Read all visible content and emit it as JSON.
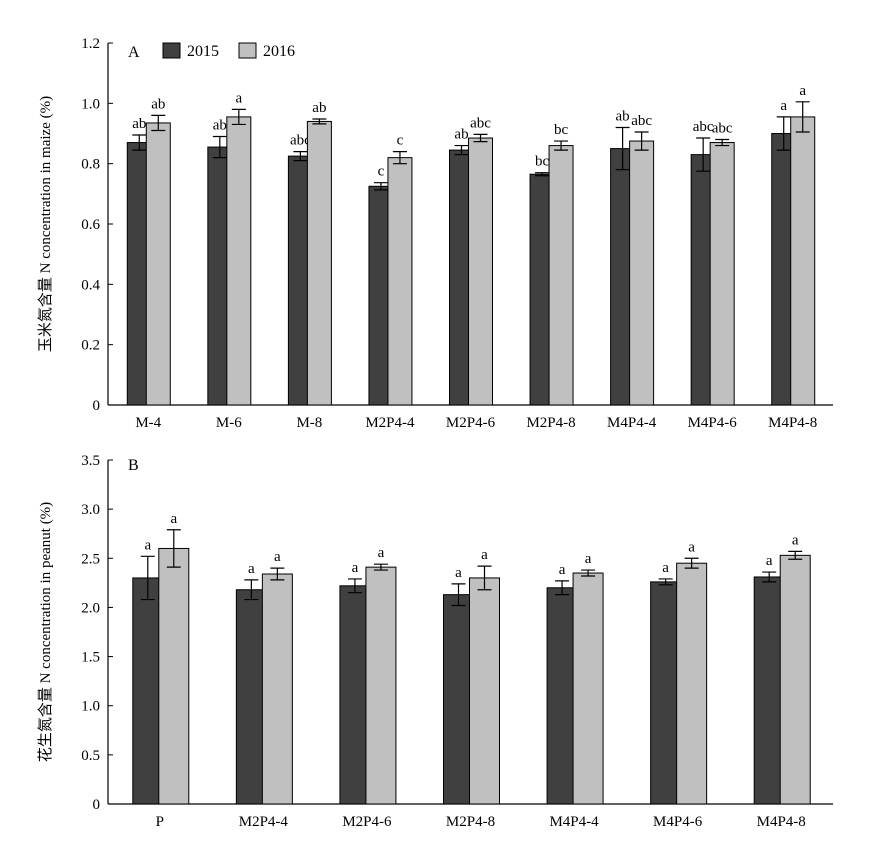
{
  "legend": {
    "series_colors": [
      "#404040",
      "#c0c0c0"
    ]
  },
  "chart_data": [
    {
      "type": "bar",
      "panel": "A",
      "ylabel": "玉米氮含量 N concentration in maize (%)",
      "ylim": [
        0,
        1.2
      ],
      "yticks": [
        "0",
        "0.2",
        "0.4",
        "0.6",
        "0.8",
        "1.0",
        "1.2"
      ],
      "categories": [
        "M-4",
        "M-6",
        "M-8",
        "M2P4-4",
        "M2P4-6",
        "M2P4-8",
        "M4P4-4",
        "M4P4-6",
        "M4P4-8"
      ],
      "legend_position": "top-left",
      "series": [
        {
          "name": "2015",
          "values": [
            0.87,
            0.855,
            0.825,
            0.725,
            0.845,
            0.765,
            0.85,
            0.83,
            0.9
          ],
          "errors": [
            0.025,
            0.035,
            0.015,
            0.012,
            0.015,
            0.005,
            0.07,
            0.055,
            0.055
          ],
          "labels": [
            "ab",
            "ab",
            "abc",
            "c",
            "ab",
            "bc",
            "ab",
            "abc",
            "a"
          ]
        },
        {
          "name": "2016",
          "values": [
            0.935,
            0.955,
            0.94,
            0.82,
            0.885,
            0.86,
            0.875,
            0.87,
            0.955
          ],
          "errors": [
            0.025,
            0.025,
            0.008,
            0.02,
            0.012,
            0.015,
            0.03,
            0.01,
            0.05
          ],
          "labels": [
            "ab",
            "a",
            "ab",
            "c",
            "abc",
            "bc",
            "abc",
            "abc",
            "a"
          ]
        }
      ]
    },
    {
      "type": "bar",
      "panel": "B",
      "ylabel": "花生氮含量 N concentration in peanut (%)",
      "ylim": [
        0,
        3.5
      ],
      "yticks": [
        "0",
        "0.5",
        "1.0",
        "1.5",
        "2.0",
        "2.5",
        "3.0",
        "3.5"
      ],
      "categories": [
        "P",
        "M2P4-4",
        "M2P4-6",
        "M2P4-8",
        "M4P4-4",
        "M4P4-6",
        "M4P4-8"
      ],
      "series": [
        {
          "name": "2015",
          "values": [
            2.3,
            2.18,
            2.22,
            2.13,
            2.2,
            2.26,
            2.31
          ],
          "errors": [
            0.22,
            0.1,
            0.07,
            0.11,
            0.07,
            0.03,
            0.05
          ],
          "labels": [
            "a",
            "a",
            "a",
            "a",
            "a",
            "a",
            "a"
          ]
        },
        {
          "name": "2016",
          "values": [
            2.6,
            2.34,
            2.41,
            2.3,
            2.35,
            2.45,
            2.53
          ],
          "errors": [
            0.19,
            0.06,
            0.03,
            0.12,
            0.03,
            0.05,
            0.04
          ],
          "labels": [
            "a",
            "a",
            "a",
            "a",
            "a",
            "a",
            "a"
          ]
        }
      ]
    }
  ]
}
